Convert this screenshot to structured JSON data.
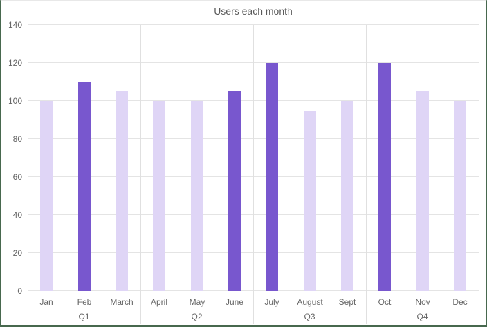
{
  "chart_data": {
    "type": "bar",
    "title": "Users each month",
    "categories": [
      "Jan",
      "Feb",
      "March",
      "April",
      "May",
      "June",
      "July",
      "August",
      "Sept",
      "Oct",
      "Nov",
      "Dec"
    ],
    "values": [
      100,
      110,
      105,
      100,
      100,
      105,
      120,
      95,
      100,
      120,
      105,
      100
    ],
    "emphasized": [
      false,
      true,
      false,
      false,
      false,
      true,
      true,
      false,
      false,
      true,
      false,
      false
    ],
    "groups": [
      "Q1",
      "Q2",
      "Q3",
      "Q4"
    ],
    "ylim": [
      0,
      140
    ],
    "yticks": [
      0,
      20,
      40,
      60,
      80,
      100,
      120,
      140
    ],
    "grid": true,
    "legend": "none",
    "xlabel": "",
    "ylabel": "",
    "colors": {
      "bar_base": "#DFD5F6",
      "bar_emphasis": "#7857CE",
      "gridline": "#E4E4E4",
      "axis_line": "#E0E0E0",
      "tick_text": "#666666",
      "title_text": "#5A5A5A",
      "frame_border": "#47684E"
    }
  }
}
